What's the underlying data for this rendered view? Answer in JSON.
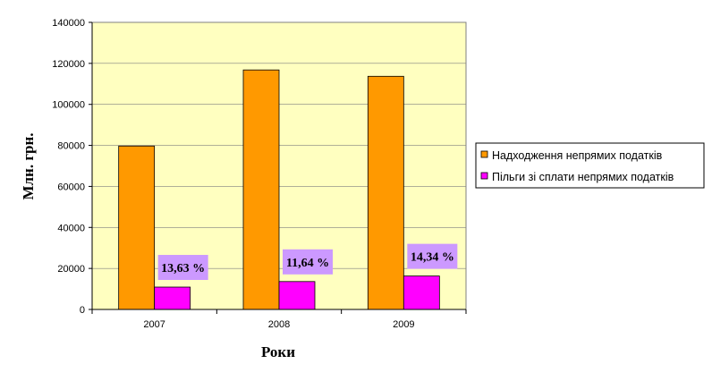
{
  "chart_data": {
    "type": "bar",
    "categories": [
      "2007",
      "2008",
      "2009"
    ],
    "series": [
      {
        "name": "Надходження непрямих податків",
        "values": [
          79700,
          116800,
          113700
        ],
        "color": "#FF9900"
      },
      {
        "name": "Пільги зі сплати непрямих податків",
        "values": [
          10900,
          13600,
          16300
        ],
        "color": "#FF00FF"
      }
    ],
    "data_labels": [
      "13,63 %",
      "11,64 %",
      "14,34 %"
    ],
    "data_label_color": "#CC99FF",
    "plot_background": "#FFFFC0",
    "xlabel": "Роки",
    "ylabel": "Млн. грн.",
    "ylim": [
      0,
      140000
    ],
    "yticks": [
      "0",
      "20000",
      "40000",
      "60000",
      "80000",
      "100000",
      "120000",
      "140000"
    ],
    "grid": true,
    "legend_position": "right"
  }
}
